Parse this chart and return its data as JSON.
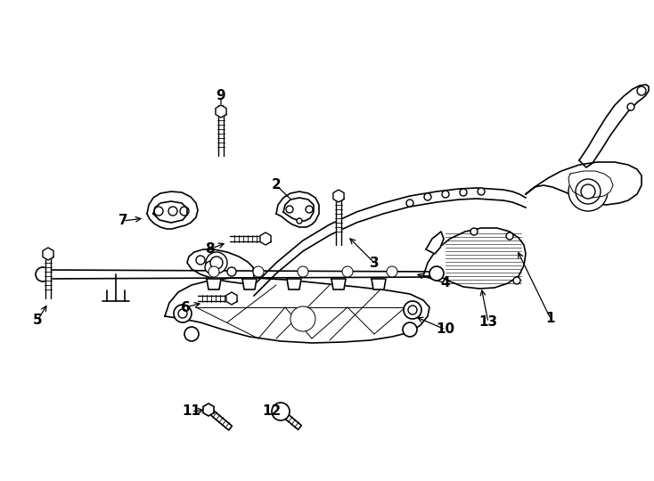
{
  "background_color": "#ffffff",
  "line_color": "#000000",
  "lw": 1.2,
  "tlw": 0.7,
  "fig_width": 7.34,
  "fig_height": 5.4,
  "dpi": 100
}
